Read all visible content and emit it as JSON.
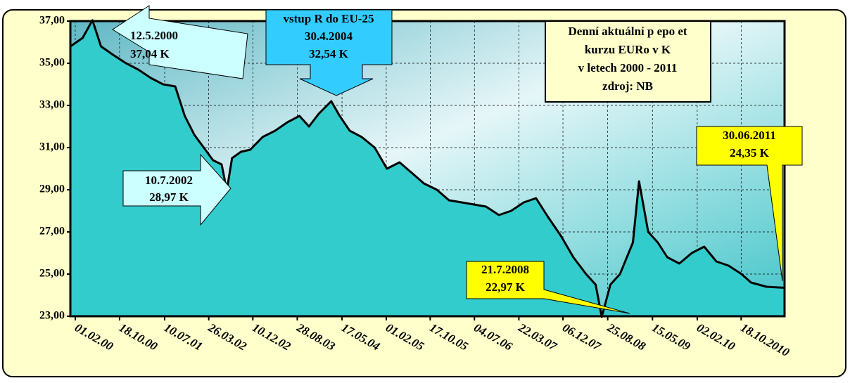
{
  "chart_data": {
    "type": "area",
    "x": [
      "2000-01-03",
      "2000-03-15",
      "2000-05-12",
      "2000-07-01",
      "2000-09-10",
      "2000-11-25",
      "2001-02-05",
      "2001-04-20",
      "2001-07-01",
      "2001-09-10",
      "2001-11-05",
      "2002-01-01",
      "2002-02-25",
      "2002-04-20",
      "2002-06-10",
      "2002-07-10",
      "2002-08-10",
      "2002-10-01",
      "2002-11-25",
      "2003-02-05",
      "2003-04-20",
      "2003-07-01",
      "2003-09-10",
      "2003-11-05",
      "2004-01-01",
      "2004-03-15",
      "2004-04-30",
      "2004-07-01",
      "2004-09-10",
      "2004-11-25",
      "2005-02-05",
      "2005-04-20",
      "2005-07-01",
      "2005-09-10",
      "2005-11-25",
      "2006-02-05",
      "2006-04-20",
      "2006-07-01",
      "2006-09-10",
      "2006-11-25",
      "2007-02-05",
      "2007-04-20",
      "2007-07-01",
      "2007-09-10",
      "2007-11-25",
      "2008-02-05",
      "2008-04-20",
      "2008-06-15",
      "2008-07-21",
      "2008-09-10",
      "2008-11-05",
      "2009-01-20",
      "2009-02-25",
      "2009-04-20",
      "2009-06-15",
      "2009-08-10",
      "2009-10-20",
      "2010-01-01",
      "2010-03-15",
      "2010-05-25",
      "2010-08-05",
      "2010-10-20",
      "2010-12-15",
      "2011-03-15",
      "2011-06-30"
    ],
    "values": [
      35.8,
      36.2,
      37.04,
      35.8,
      35.4,
      35.0,
      34.7,
      34.3,
      34.0,
      33.9,
      32.5,
      31.6,
      31.0,
      30.4,
      30.2,
      28.97,
      30.5,
      30.8,
      30.9,
      31.5,
      31.8,
      32.2,
      32.5,
      32.0,
      32.6,
      33.2,
      32.54,
      31.8,
      31.5,
      31.0,
      30.0,
      30.3,
      29.8,
      29.3,
      29.0,
      28.5,
      28.4,
      28.3,
      28.2,
      27.8,
      28.0,
      28.4,
      28.6,
      27.7,
      26.8,
      25.8,
      25.0,
      24.5,
      22.97,
      24.5,
      25.0,
      26.5,
      29.4,
      27.0,
      26.5,
      25.8,
      25.5,
      26.0,
      26.3,
      25.6,
      25.4,
      25.0,
      24.6,
      24.4,
      24.35
    ],
    "color": "#33cccc",
    "line_color": "#000000",
    "xlim": [
      "2000-01-03",
      "2011-06-30"
    ],
    "ylim": [
      23,
      37
    ],
    "yticks": [
      {
        "value": 23,
        "label": "23,00"
      },
      {
        "value": 25,
        "label": "25,00"
      },
      {
        "value": 27,
        "label": "27,00"
      },
      {
        "value": 29,
        "label": "29,00"
      },
      {
        "value": 31,
        "label": "31,00"
      },
      {
        "value": 33,
        "label": "33,00"
      },
      {
        "value": 35,
        "label": "35,00"
      },
      {
        "value": 37,
        "label": "37,00"
      }
    ],
    "xticks": [
      {
        "value": "2000-02-01",
        "label": "01.02.00"
      },
      {
        "value": "2000-10-18",
        "label": "18.10.00"
      },
      {
        "value": "2001-07-10",
        "label": "10.07.01"
      },
      {
        "value": "2002-03-26",
        "label": "26.03.02"
      },
      {
        "value": "2002-12-10",
        "label": "10.12.02"
      },
      {
        "value": "2003-08-28",
        "label": "28.08.03"
      },
      {
        "value": "2004-05-17",
        "label": "17.05.04"
      },
      {
        "value": "2005-02-01",
        "label": "01.02.05"
      },
      {
        "value": "2005-10-17",
        "label": "17.10.05"
      },
      {
        "value": "2006-07-04",
        "label": "04.07.06"
      },
      {
        "value": "2007-03-22",
        "label": "22.03.07"
      },
      {
        "value": "2007-12-06",
        "label": "06.12.07"
      },
      {
        "value": "2008-08-25",
        "label": "25.08.08"
      },
      {
        "value": "2009-05-15",
        "label": "15.05.09"
      },
      {
        "value": "2010-02-02",
        "label": "02.02.10"
      },
      {
        "value": "2010-10-18",
        "label": "18.10.2010"
      }
    ],
    "grid": true,
    "title_box": [
      "Denní aktuální p epo et",
      "kurzu EURo v K",
      "v letech 2000 - 2011",
      "zdroj:   NB"
    ],
    "annotations": [
      [
        "12.5.2000",
        "37,04 K"
      ],
      [
        "vstup   R do EU-25",
        "30.4.2004",
        "32,54 K"
      ],
      [
        "10.7.2002",
        "28,97 K"
      ],
      [
        "21.7.2008",
        "22,97 K"
      ],
      [
        "30.06.2011",
        "24,35 K"
      ]
    ]
  }
}
